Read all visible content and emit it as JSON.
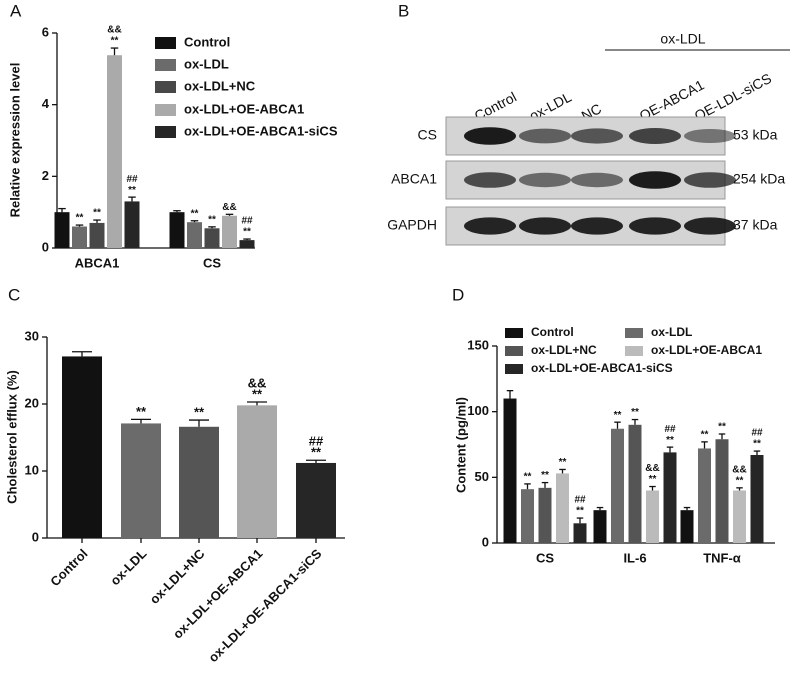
{
  "chart_data": [
    {
      "type": "bar",
      "panel": "A",
      "y_label": "Relative expression level",
      "categories": [
        "ABCA1",
        "CS"
      ],
      "series": [
        {
          "name": "Control",
          "color": "#111111",
          "values": [
            1.0,
            1.0
          ],
          "errors": [
            0.1,
            0.04
          ],
          "annotations": [
            null,
            null
          ]
        },
        {
          "name": "ox-LDL",
          "color": "#6b6b6b",
          "values": [
            0.6,
            0.72
          ],
          "errors": [
            0.04,
            0.04
          ],
          "annotations": [
            [
              "**"
            ],
            [
              "**"
            ]
          ]
        },
        {
          "name": "ox-LDL+NC",
          "color": "#484848",
          "values": [
            0.7,
            0.55
          ],
          "errors": [
            0.08,
            0.04
          ],
          "annotations": [
            [
              "**"
            ],
            [
              "**"
            ]
          ]
        },
        {
          "name": "ox-LDL+OE-ABCA1",
          "color": "#aaaaaa",
          "values": [
            5.38,
            0.9
          ],
          "errors": [
            0.2,
            0.04
          ],
          "annotations": [
            [
              "&&",
              "**"
            ],
            [
              "&&"
            ]
          ]
        },
        {
          "name": "ox-LDL+OE-ABCA1-siCS",
          "color": "#262626",
          "values": [
            1.3,
            0.22
          ],
          "errors": [
            0.12,
            0.03
          ],
          "annotations": [
            [
              "##",
              "**"
            ],
            [
              "##",
              "**"
            ]
          ]
        }
      ],
      "ylim": [
        0,
        6
      ],
      "yticks": [
        0,
        2,
        4,
        6
      ]
    },
    {
      "type": "bar",
      "panel": "C",
      "y_label": "Cholesterol efflux (%)",
      "categories": [
        "Control",
        "ox-LDL",
        "ox-LDL+NC",
        "ox-LDL+OE-ABCA1",
        "ox-LDL+OE-ABCA1-siCS"
      ],
      "values": [
        27.1,
        17.1,
        16.6,
        19.8,
        11.2
      ],
      "errors": [
        0.7,
        0.6,
        1.0,
        0.5,
        0.4
      ],
      "colors": [
        "#111111",
        "#6b6b6b",
        "#555555",
        "#aaaaaa",
        "#262626"
      ],
      "annotations": [
        null,
        [
          "**"
        ],
        [
          "**"
        ],
        [
          "&&",
          "**"
        ],
        [
          "##",
          "**"
        ]
      ],
      "ylim": [
        0,
        30
      ],
      "yticks": [
        0,
        10,
        20,
        30
      ]
    },
    {
      "type": "bar",
      "panel": "D",
      "y_label": "Content (pg/ml)",
      "categories": [
        "CS",
        "IL-6",
        "TNF-α"
      ],
      "series": [
        {
          "name": "Control",
          "color": "#111111",
          "values": [
            110,
            25,
            25
          ],
          "errors": [
            6,
            2,
            2
          ],
          "annotations": [
            null,
            null,
            null
          ]
        },
        {
          "name": "ox-LDL",
          "color": "#6b6b6b",
          "values": [
            41,
            87,
            72
          ],
          "errors": [
            4,
            5,
            5
          ],
          "annotations": [
            [
              "**"
            ],
            [
              "**"
            ],
            [
              "**"
            ]
          ]
        },
        {
          "name": "ox-LDL+NC",
          "color": "#555555",
          "values": [
            42,
            90,
            79
          ],
          "errors": [
            4,
            4,
            4
          ],
          "annotations": [
            [
              "**"
            ],
            [
              "**"
            ],
            [
              "**"
            ]
          ]
        },
        {
          "name": "ox-LDL+OE-ABCA1",
          "color": "#bbbbbb",
          "values": [
            53,
            40,
            40
          ],
          "errors": [
            3,
            3,
            2
          ],
          "annotations": [
            [
              "**"
            ],
            [
              "&&",
              "**"
            ],
            [
              "&&",
              "**"
            ]
          ]
        },
        {
          "name": "ox-LDL+OE-ABCA1-siCS",
          "color": "#262626",
          "values": [
            15,
            69,
            67
          ],
          "errors": [
            4,
            4,
            3
          ],
          "annotations": [
            [
              "##",
              "**"
            ],
            [
              "##",
              "**"
            ],
            [
              "##",
              "**"
            ]
          ]
        }
      ],
      "ylim": [
        0,
        150
      ],
      "yticks": [
        0,
        50,
        100,
        150
      ]
    }
  ],
  "blot": {
    "panel": "B",
    "group_label": "ox-LDL",
    "lanes": [
      "Control",
      "ox-LDL",
      "NC",
      "OE-ABCA1",
      "OE-LDL-siCS"
    ],
    "rows": [
      {
        "protein": "CS",
        "size": "53 kDa"
      },
      {
        "protein": "ABCA1",
        "size": "254 kDa"
      },
      {
        "protein": "GAPDH",
        "size": "37 kDa"
      }
    ]
  }
}
